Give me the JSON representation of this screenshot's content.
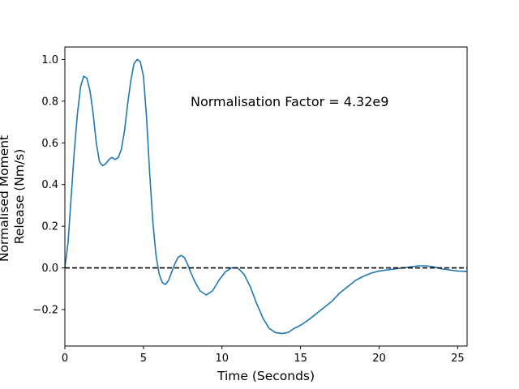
{
  "chart_data": {
    "type": "line",
    "title": "",
    "xlabel": "Time (Seconds)",
    "ylabel_lines": [
      "Normalised Moment",
      "Release (Nm/s)"
    ],
    "xlim": [
      0,
      25.6
    ],
    "ylim": [
      -0.375,
      1.06
    ],
    "xticks": [
      0,
      5,
      10,
      15,
      20,
      25
    ],
    "xtick_labels": [
      "0",
      "5",
      "10",
      "15",
      "20",
      "25"
    ],
    "yticks": [
      -0.2,
      0.0,
      0.2,
      0.4,
      0.6,
      0.8,
      1.0
    ],
    "ytick_labels": [
      "−0.2",
      "0.0",
      "0.2",
      "0.4",
      "0.6",
      "0.8",
      "1.0"
    ],
    "grid": false,
    "legend": "none",
    "annotation": {
      "text": "Normalisation Factor = 4.32e9",
      "x": 8.0,
      "y": 0.8
    },
    "series": [
      {
        "color": "#1f77b4",
        "style": "solid",
        "points": [
          [
            0.0,
            0.0
          ],
          [
            0.2,
            0.12
          ],
          [
            0.4,
            0.34
          ],
          [
            0.6,
            0.56
          ],
          [
            0.8,
            0.74
          ],
          [
            1.0,
            0.87
          ],
          [
            1.2,
            0.92
          ],
          [
            1.4,
            0.91
          ],
          [
            1.6,
            0.85
          ],
          [
            1.8,
            0.74
          ],
          [
            2.0,
            0.6
          ],
          [
            2.2,
            0.51
          ],
          [
            2.4,
            0.49
          ],
          [
            2.6,
            0.5
          ],
          [
            2.8,
            0.52
          ],
          [
            3.0,
            0.53
          ],
          [
            3.2,
            0.52
          ],
          [
            3.4,
            0.53
          ],
          [
            3.6,
            0.57
          ],
          [
            3.8,
            0.66
          ],
          [
            4.0,
            0.79
          ],
          [
            4.2,
            0.9
          ],
          [
            4.4,
            0.98
          ],
          [
            4.6,
            1.0
          ],
          [
            4.8,
            0.99
          ],
          [
            5.0,
            0.92
          ],
          [
            5.2,
            0.72
          ],
          [
            5.4,
            0.45
          ],
          [
            5.6,
            0.22
          ],
          [
            5.8,
            0.06
          ],
          [
            6.0,
            -0.03
          ],
          [
            6.2,
            -0.07
          ],
          [
            6.4,
            -0.08
          ],
          [
            6.6,
            -0.06
          ],
          [
            6.8,
            -0.02
          ],
          [
            7.0,
            0.02
          ],
          [
            7.2,
            0.05
          ],
          [
            7.4,
            0.06
          ],
          [
            7.6,
            0.05
          ],
          [
            7.8,
            0.02
          ],
          [
            8.0,
            -0.02
          ],
          [
            8.3,
            -0.07
          ],
          [
            8.6,
            -0.11
          ],
          [
            9.0,
            -0.13
          ],
          [
            9.4,
            -0.11
          ],
          [
            9.8,
            -0.06
          ],
          [
            10.2,
            -0.02
          ],
          [
            10.6,
            0.0
          ],
          [
            11.0,
            0.0
          ],
          [
            11.4,
            -0.03
          ],
          [
            11.8,
            -0.09
          ],
          [
            12.2,
            -0.17
          ],
          [
            12.6,
            -0.24
          ],
          [
            13.0,
            -0.29
          ],
          [
            13.4,
            -0.31
          ],
          [
            13.8,
            -0.315
          ],
          [
            14.2,
            -0.31
          ],
          [
            14.6,
            -0.29
          ],
          [
            15.0,
            -0.275
          ],
          [
            15.5,
            -0.25
          ],
          [
            16.0,
            -0.22
          ],
          [
            16.5,
            -0.19
          ],
          [
            17.0,
            -0.16
          ],
          [
            17.5,
            -0.12
          ],
          [
            18.0,
            -0.09
          ],
          [
            18.5,
            -0.06
          ],
          [
            19.0,
            -0.04
          ],
          [
            19.5,
            -0.025
          ],
          [
            20.0,
            -0.015
          ],
          [
            20.5,
            -0.01
          ],
          [
            21.0,
            -0.005
          ],
          [
            21.5,
            0.0
          ],
          [
            22.0,
            0.005
          ],
          [
            22.5,
            0.01
          ],
          [
            23.0,
            0.01
          ],
          [
            23.5,
            0.005
          ],
          [
            24.0,
            -0.005
          ],
          [
            24.5,
            -0.01
          ],
          [
            25.0,
            -0.015
          ],
          [
            25.6,
            -0.017
          ]
        ]
      },
      {
        "color": "#000000",
        "style": "dashed",
        "points": [
          [
            0.0,
            0.0
          ],
          [
            25.6,
            0.0
          ]
        ]
      }
    ]
  }
}
